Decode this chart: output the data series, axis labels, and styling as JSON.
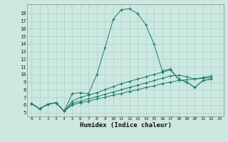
{
  "xlabel": "Humidex (Indice chaleur)",
  "background_color": "#cce8e0",
  "grid_color": "#aad4c8",
  "line_color": "#1a7a6e",
  "xlim": [
    -0.5,
    23.5
  ],
  "ylim": [
    4.5,
    19.2
  ],
  "xticks": [
    0,
    1,
    2,
    3,
    4,
    5,
    6,
    7,
    8,
    9,
    10,
    11,
    12,
    13,
    14,
    15,
    16,
    17,
    18,
    19,
    20,
    21,
    22,
    23
  ],
  "yticks": [
    5,
    6,
    7,
    8,
    9,
    10,
    11,
    12,
    13,
    14,
    15,
    16,
    17,
    18
  ],
  "series": [
    [
      6.2,
      5.5,
      6.1,
      6.3,
      5.2,
      7.5,
      7.6,
      7.5,
      10.0,
      13.5,
      17.2,
      18.5,
      18.6,
      18.0,
      16.5,
      14.0,
      10.5,
      10.7,
      9.4,
      9.0,
      8.3,
      9.2,
      9.4
    ],
    [
      6.2,
      5.5,
      6.1,
      6.3,
      5.2,
      6.0,
      6.3,
      6.5,
      6.8,
      7.0,
      7.3,
      7.5,
      7.8,
      8.0,
      8.3,
      8.5,
      8.8,
      9.0,
      9.2,
      9.3,
      9.4,
      9.5,
      9.6
    ],
    [
      6.2,
      5.5,
      6.1,
      6.3,
      5.2,
      6.2,
      6.5,
      6.8,
      7.1,
      7.4,
      7.7,
      8.0,
      8.3,
      8.6,
      8.9,
      9.2,
      9.5,
      9.8,
      9.9,
      9.7,
      9.4,
      9.6,
      9.8
    ],
    [
      6.2,
      5.5,
      6.1,
      6.3,
      5.2,
      6.5,
      7.0,
      7.3,
      7.6,
      8.0,
      8.4,
      8.8,
      9.1,
      9.4,
      9.7,
      10.0,
      10.3,
      10.6,
      9.4,
      9.0,
      8.3,
      9.2,
      9.4
    ]
  ],
  "x_values": [
    0,
    1,
    2,
    3,
    4,
    5,
    6,
    7,
    8,
    9,
    10,
    11,
    12,
    13,
    14,
    15,
    16,
    17,
    18,
    19,
    20,
    21,
    22
  ]
}
